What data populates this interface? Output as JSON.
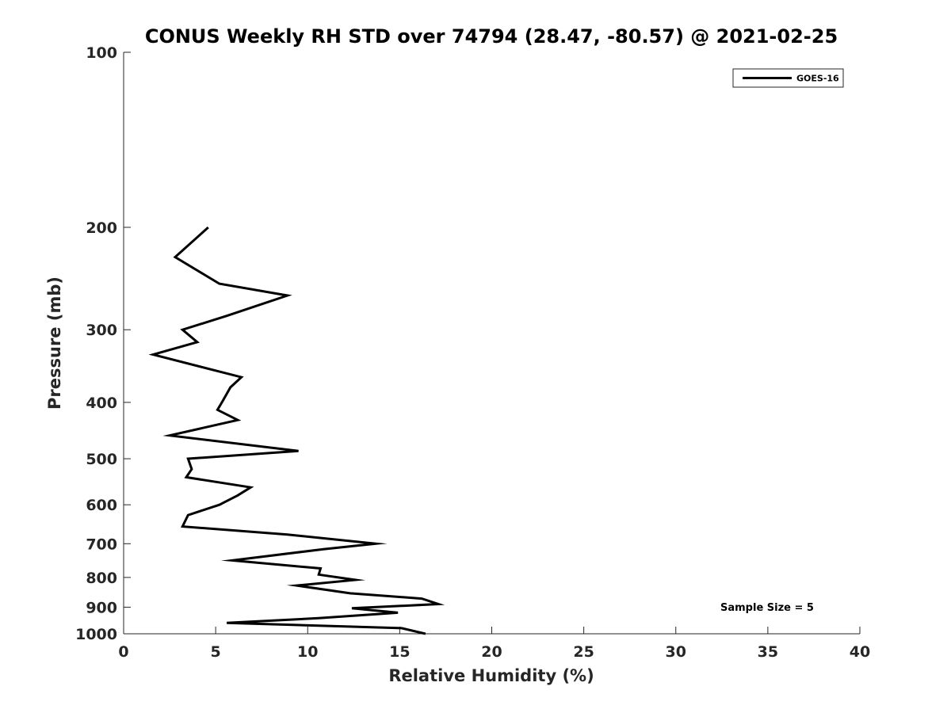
{
  "chart_data": {
    "type": "line",
    "title": "CONUS Weekly RH STD over 74794 (28.47, -80.57) @ 2021-02-25",
    "xlabel": "Relative Humidity (%)",
    "ylabel": "Pressure (mb)",
    "xlim": [
      0,
      40
    ],
    "ylim": [
      100,
      1000
    ],
    "y_scale": "log",
    "y_inverted": true,
    "x_ticks": [
      0,
      5,
      10,
      15,
      20,
      25,
      30,
      35,
      40
    ],
    "x_tick_labels": [
      "0",
      "5",
      "10",
      "15",
      "20",
      "25",
      "30",
      "35",
      "40"
    ],
    "y_ticks": [
      100,
      200,
      300,
      400,
      500,
      600,
      700,
      800,
      900,
      1000
    ],
    "y_tick_labels": [
      "100",
      "200",
      "300",
      "400",
      "500",
      "600",
      "700",
      "800",
      "900",
      "1000"
    ],
    "grid": false,
    "legend_position": "top-right",
    "series": [
      {
        "name": "GOES-16",
        "color": "#000000",
        "points": [
          {
            "x": 4.6,
            "y": 200
          },
          {
            "x": 2.8,
            "y": 225
          },
          {
            "x": 5.2,
            "y": 250
          },
          {
            "x": 8.9,
            "y": 262
          },
          {
            "x": 5.6,
            "y": 284
          },
          {
            "x": 3.2,
            "y": 300
          },
          {
            "x": 4.0,
            "y": 315
          },
          {
            "x": 1.6,
            "y": 331
          },
          {
            "x": 6.4,
            "y": 362
          },
          {
            "x": 5.8,
            "y": 377
          },
          {
            "x": 5.4,
            "y": 397
          },
          {
            "x": 5.1,
            "y": 412
          },
          {
            "x": 6.2,
            "y": 429
          },
          {
            "x": 2.5,
            "y": 456
          },
          {
            "x": 9.5,
            "y": 485
          },
          {
            "x": 3.5,
            "y": 500
          },
          {
            "x": 3.7,
            "y": 521
          },
          {
            "x": 3.4,
            "y": 538
          },
          {
            "x": 6.9,
            "y": 560
          },
          {
            "x": 6.2,
            "y": 578
          },
          {
            "x": 5.2,
            "y": 600
          },
          {
            "x": 3.5,
            "y": 625
          },
          {
            "x": 3.2,
            "y": 654
          },
          {
            "x": 8.9,
            "y": 675
          },
          {
            "x": 13.7,
            "y": 700
          },
          {
            "x": 10.9,
            "y": 715
          },
          {
            "x": 5.9,
            "y": 748
          },
          {
            "x": 10.7,
            "y": 772
          },
          {
            "x": 10.6,
            "y": 791
          },
          {
            "x": 12.6,
            "y": 808
          },
          {
            "x": 9.4,
            "y": 826
          },
          {
            "x": 12.3,
            "y": 852
          },
          {
            "x": 16.2,
            "y": 870
          },
          {
            "x": 17.1,
            "y": 889
          },
          {
            "x": 12.4,
            "y": 904
          },
          {
            "x": 14.9,
            "y": 920
          },
          {
            "x": 10.6,
            "y": 940
          },
          {
            "x": 5.6,
            "y": 958
          },
          {
            "x": 15.1,
            "y": 978
          },
          {
            "x": 16.4,
            "y": 1000
          }
        ]
      }
    ],
    "annotations": [
      {
        "text": "Sample Size = 5",
        "x": 35,
        "y": 900
      }
    ]
  }
}
